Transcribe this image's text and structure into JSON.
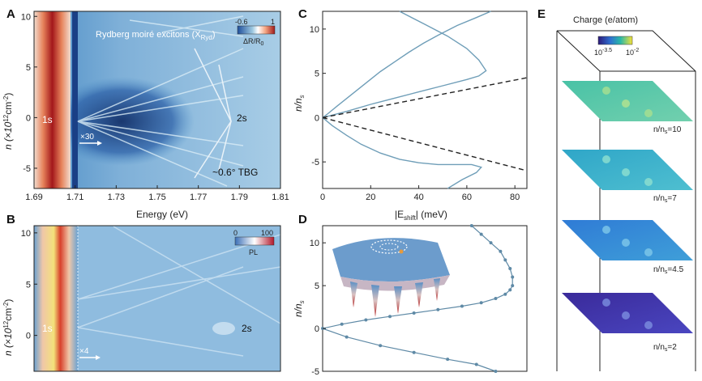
{
  "panels": {
    "A": {
      "label": "A",
      "title": "Rydberg moiré excitons (X",
      "title_sub": "Ryd",
      "title_end": ")",
      "cbar_min": "-0.6",
      "cbar_max": "1",
      "cbar_label": "ΔR/R",
      "cbar_label_sub": "0",
      "exciton_1s": "1s",
      "exciton_2s": "2s",
      "multiplier": "×30",
      "sample": "~0.6° TBG",
      "xlabel": "Energy (eV)",
      "ylabel_main": "n (×10",
      "ylabel_sup": "12",
      "ylabel_unit": "cm",
      "ylabel_sup2": "-2",
      "ylabel_end": ")",
      "xticks": [
        "1.69",
        "1.71",
        "1.73",
        "1.75",
        "1.77",
        "1.79",
        "1.81"
      ],
      "yticks": [
        "10",
        "5",
        "0",
        "-5"
      ]
    },
    "B": {
      "label": "B",
      "cbar_min": "0",
      "cbar_max": "100",
      "cbar_label": "PL",
      "exciton_1s": "1s",
      "exciton_2s": "2s",
      "multiplier": "×4",
      "ylabel_main": "n (×10",
      "ylabel_sup": "12",
      "ylabel_unit": "cm",
      "ylabel_sup2": "-2",
      "ylabel_end": ")",
      "yticks": [
        "10",
        "5",
        "0",
        "-5"
      ]
    },
    "C": {
      "label": "C",
      "xlabel_pre": "|E",
      "xlabel_sub": "shift",
      "xlabel_post": "| (meV)",
      "ylabel": "n/n",
      "ylabel_sub": "s",
      "xticks": [
        "0",
        "20",
        "40",
        "60",
        "80"
      ],
      "yticks": [
        "10",
        "5",
        "0",
        "-5"
      ]
    },
    "D": {
      "label": "D",
      "ylabel": "n/n",
      "ylabel_sub": "s",
      "yticks": [
        "10",
        "5",
        "0",
        "-5"
      ]
    },
    "E": {
      "label": "E",
      "title": "Charge (e/atom)",
      "cbar_min": "10",
      "cbar_min_sup": "-3.5",
      "cbar_max": "10",
      "cbar_max_sup": "-2",
      "layers": [
        {
          "label": "n/n",
          "sub": "s",
          "value": "=10"
        },
        {
          "label": "n/n",
          "sub": "s",
          "value": "=7"
        },
        {
          "label": "n/n",
          "sub": "s",
          "value": "=4.5"
        },
        {
          "label": "n/n",
          "sub": "s",
          "value": "=2"
        }
      ]
    }
  },
  "chart_data": [
    {
      "type": "line",
      "panel": "C",
      "xlabel": "|E_shift| (meV)",
      "ylabel": "n/n_s",
      "xlim": [
        0,
        85
      ],
      "ylim": [
        -8,
        12
      ],
      "series": [
        {
          "style": "solid",
          "x": [
            70,
            64,
            56,
            48,
            42,
            36,
            30,
            24,
            18,
            12,
            6,
            2,
            0,
            4,
            10,
            16,
            24,
            32,
            40,
            48,
            56,
            62,
            66,
            64,
            58,
            52
          ],
          "y": [
            12,
            11.3,
            10.4,
            9.3,
            8.4,
            7.4,
            6.3,
            5.2,
            3.9,
            2.6,
            1.3,
            0.4,
            0,
            -0.9,
            -2,
            -3,
            -4,
            -4.7,
            -5.1,
            -5.3,
            -5.3,
            -5.3,
            -5.6,
            -6.2,
            -7,
            -8
          ]
        },
        {
          "style": "solid",
          "x": [
            0,
            10,
            20,
            30,
            40,
            50,
            60,
            65,
            68,
            65,
            60,
            52,
            42,
            32
          ],
          "y": [
            0,
            0.7,
            1.5,
            2.2,
            2.9,
            3.6,
            4.3,
            4.7,
            5.3,
            6.5,
            7.8,
            9.2,
            10.6,
            12
          ]
        },
        {
          "style": "dashed",
          "x": [
            0,
            85
          ],
          "y": [
            0,
            4.5
          ]
        },
        {
          "style": "dashed",
          "x": [
            0,
            85
          ],
          "y": [
            0,
            -6
          ]
        }
      ]
    },
    {
      "type": "line",
      "panel": "D",
      "ylabel": "n/n_s",
      "xlim": [
        0,
        85
      ],
      "ylim": [
        -5,
        12
      ],
      "series": [
        {
          "style": "markers",
          "x": [
            62,
            66,
            70,
            74,
            76,
            78,
            79,
            79,
            78,
            76,
            72,
            66,
            58,
            48,
            38,
            28,
            18,
            8,
            0,
            10,
            24,
            38,
            52,
            64,
            72
          ],
          "y": [
            12,
            11,
            10,
            9,
            8,
            7,
            6,
            5,
            4.5,
            4,
            3.5,
            3,
            2.6,
            2.2,
            1.8,
            1.4,
            1,
            0.5,
            0,
            -1,
            -2,
            -2.8,
            -3.6,
            -4.2,
            -5
          ]
        }
      ]
    }
  ]
}
